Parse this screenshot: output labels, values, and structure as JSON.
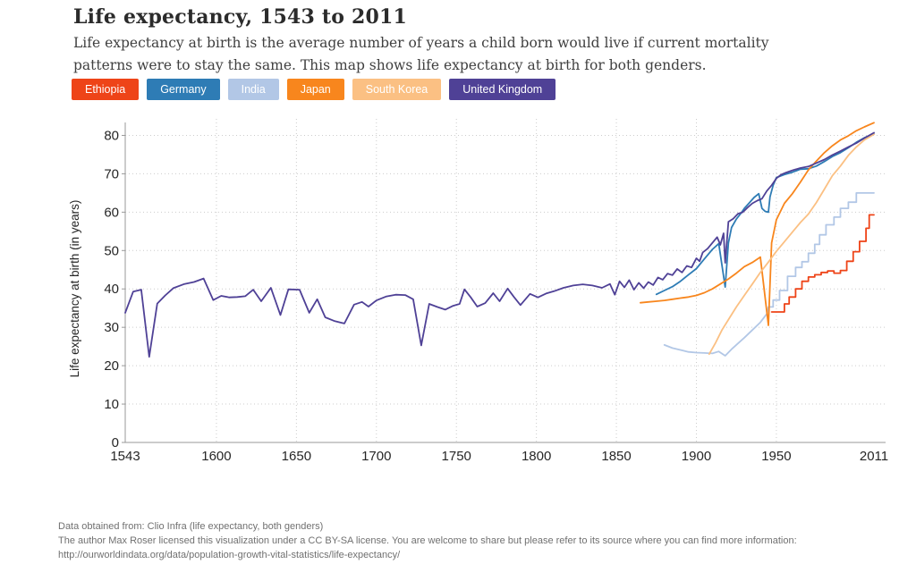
{
  "header": {
    "title": "Life expectancy, 1543 to 2011",
    "subtitle": "Life expectancy at birth is the average number of years a child born would live if current mortality patterns were to stay the same. This map shows life expectancy at birth for both genders."
  },
  "footer": {
    "line1": "Data obtained from: Clio Infra (life expectancy, both genders)",
    "line2": "The author Max Roser licensed this visualization under a CC BY-SA license. You are welcome to share but please refer to its source where you can find more information:",
    "line3": "http://ourworldindata.org/data/population-growth-vital-statistics/life-expectancy/"
  },
  "chart_data": {
    "type": "line",
    "title": "Life expectancy, 1543 to 2011",
    "xlabel": "",
    "ylabel": "Life expectancy at birth (in years)",
    "x_range": [
      1543,
      2011
    ],
    "y_range": [
      0,
      80
    ],
    "x_ticks": [
      1543,
      1600,
      1650,
      1700,
      1750,
      1800,
      1850,
      1900,
      1950,
      2011
    ],
    "y_ticks": [
      0,
      10,
      20,
      30,
      40,
      50,
      60,
      70,
      80
    ],
    "x_gridlines": [
      1600,
      1650,
      1700,
      1750,
      1800,
      1850,
      1900,
      1950
    ],
    "grid": "dotted",
    "grid_color": "#cccccc",
    "axis_color": "#999999",
    "legend_position": "top",
    "series": [
      {
        "name": "Ethiopia",
        "color": "#ee4418",
        "style": "step",
        "points": [
          [
            1947,
            34.0
          ],
          [
            1955,
            34.0
          ],
          [
            1955,
            36.1
          ],
          [
            1958,
            36.1
          ],
          [
            1958,
            37.9
          ],
          [
            1962,
            37.9
          ],
          [
            1962,
            40.0
          ],
          [
            1966,
            40.0
          ],
          [
            1966,
            42.0
          ],
          [
            1970,
            42.0
          ],
          [
            1970,
            43.1
          ],
          [
            1974,
            43.1
          ],
          [
            1974,
            43.7
          ],
          [
            1978,
            43.7
          ],
          [
            1978,
            44.3
          ],
          [
            1982,
            44.3
          ],
          [
            1982,
            44.7
          ],
          [
            1986,
            44.7
          ],
          [
            1986,
            44.1
          ],
          [
            1990,
            44.1
          ],
          [
            1990,
            44.8
          ],
          [
            1994,
            44.8
          ],
          [
            1994,
            47.2
          ],
          [
            1998,
            47.2
          ],
          [
            1998,
            49.7
          ],
          [
            2002,
            49.7
          ],
          [
            2002,
            52.4
          ],
          [
            2006,
            52.4
          ],
          [
            2006,
            55.8
          ],
          [
            2008,
            55.8
          ],
          [
            2008,
            59.3
          ],
          [
            2011,
            59.3
          ]
        ]
      },
      {
        "name": "Germany",
        "color": "#2e7cb5",
        "style": "line",
        "points": [
          [
            1875,
            38.6
          ],
          [
            1880,
            39.6
          ],
          [
            1885,
            40.6
          ],
          [
            1890,
            42.0
          ],
          [
            1895,
            43.7
          ],
          [
            1900,
            45.3
          ],
          [
            1905,
            47.8
          ],
          [
            1910,
            50.3
          ],
          [
            1914,
            51.8
          ],
          [
            1918,
            40.5
          ],
          [
            1920,
            52.0
          ],
          [
            1922,
            56.0
          ],
          [
            1925,
            58.2
          ],
          [
            1928,
            59.8
          ],
          [
            1930,
            61.0
          ],
          [
            1933,
            62.4
          ],
          [
            1936,
            63.8
          ],
          [
            1939,
            64.8
          ],
          [
            1941,
            61.0
          ],
          [
            1943,
            60.2
          ],
          [
            1945,
            60.0
          ],
          [
            1946,
            64.0
          ],
          [
            1948,
            67.0
          ],
          [
            1950,
            69.0
          ],
          [
            1955,
            69.8
          ],
          [
            1960,
            70.4
          ],
          [
            1965,
            71.2
          ],
          [
            1970,
            71.3
          ],
          [
            1975,
            72.0
          ],
          [
            1980,
            73.2
          ],
          [
            1985,
            74.5
          ],
          [
            1990,
            75.5
          ],
          [
            1995,
            76.8
          ],
          [
            2000,
            78.2
          ],
          [
            2005,
            79.4
          ],
          [
            2011,
            80.4
          ]
        ]
      },
      {
        "name": "India",
        "color": "#b2c7e6",
        "style": "step",
        "points": [
          [
            1880,
            25.4
          ],
          [
            1885,
            24.6
          ],
          [
            1890,
            24.1
          ],
          [
            1895,
            23.6
          ],
          [
            1900,
            23.4
          ],
          [
            1905,
            23.3
          ],
          [
            1910,
            23.2
          ],
          [
            1914,
            23.7
          ],
          [
            1918,
            22.6
          ],
          [
            1922,
            24.3
          ],
          [
            1926,
            25.8
          ],
          [
            1930,
            27.3
          ],
          [
            1935,
            29.3
          ],
          [
            1940,
            31.3
          ],
          [
            1944,
            33.5
          ],
          [
            1945,
            35.3
          ],
          [
            1948,
            35.3
          ],
          [
            1948,
            37.1
          ],
          [
            1952,
            37.1
          ],
          [
            1952,
            39.6
          ],
          [
            1957,
            39.6
          ],
          [
            1957,
            43.3
          ],
          [
            1962,
            43.3
          ],
          [
            1962,
            45.6
          ],
          [
            1966,
            45.6
          ],
          [
            1966,
            47.1
          ],
          [
            1970,
            47.1
          ],
          [
            1970,
            49.3
          ],
          [
            1974,
            49.3
          ],
          [
            1974,
            51.6
          ],
          [
            1977,
            51.6
          ],
          [
            1977,
            54.1
          ],
          [
            1981,
            54.1
          ],
          [
            1981,
            56.7
          ],
          [
            1986,
            56.7
          ],
          [
            1986,
            58.7
          ],
          [
            1990,
            58.7
          ],
          [
            1990,
            61.0
          ],
          [
            1995,
            61.0
          ],
          [
            1995,
            62.6
          ],
          [
            2000,
            62.6
          ],
          [
            2000,
            65.0
          ],
          [
            2011,
            65.0
          ]
        ]
      },
      {
        "name": "Japan",
        "color": "#f8861d",
        "style": "line",
        "points": [
          [
            1865,
            36.4
          ],
          [
            1870,
            36.6
          ],
          [
            1875,
            36.8
          ],
          [
            1880,
            37.0
          ],
          [
            1885,
            37.3
          ],
          [
            1890,
            37.6
          ],
          [
            1895,
            37.9
          ],
          [
            1900,
            38.3
          ],
          [
            1905,
            39.0
          ],
          [
            1910,
            40.0
          ],
          [
            1915,
            41.3
          ],
          [
            1920,
            42.6
          ],
          [
            1925,
            44.1
          ],
          [
            1930,
            45.8
          ],
          [
            1935,
            46.9
          ],
          [
            1940,
            48.3
          ],
          [
            1945,
            30.5
          ],
          [
            1947,
            52.0
          ],
          [
            1950,
            58.0
          ],
          [
            1955,
            62.3
          ],
          [
            1960,
            64.8
          ],
          [
            1965,
            67.8
          ],
          [
            1970,
            71.0
          ],
          [
            1975,
            73.3
          ],
          [
            1980,
            75.5
          ],
          [
            1985,
            77.3
          ],
          [
            1990,
            78.8
          ],
          [
            1995,
            79.9
          ],
          [
            2000,
            81.2
          ],
          [
            2005,
            82.2
          ],
          [
            2011,
            83.3
          ]
        ]
      },
      {
        "name": "South Korea",
        "color": "#fbc083",
        "style": "line",
        "points": [
          [
            1908,
            23.0
          ],
          [
            1912,
            26.0
          ],
          [
            1916,
            29.3
          ],
          [
            1920,
            32.0
          ],
          [
            1925,
            35.3
          ],
          [
            1930,
            38.3
          ],
          [
            1935,
            41.3
          ],
          [
            1940,
            44.3
          ],
          [
            1945,
            47.0
          ],
          [
            1950,
            49.8
          ],
          [
            1955,
            52.3
          ],
          [
            1960,
            54.8
          ],
          [
            1965,
            57.3
          ],
          [
            1970,
            59.5
          ],
          [
            1975,
            62.5
          ],
          [
            1980,
            66.0
          ],
          [
            1985,
            69.5
          ],
          [
            1990,
            72.0
          ],
          [
            1995,
            74.8
          ],
          [
            2000,
            77.0
          ],
          [
            2005,
            78.8
          ],
          [
            2011,
            80.3
          ]
        ]
      },
      {
        "name": "United Kingdom",
        "color": "#4f4196",
        "style": "line",
        "points": [
          [
            1543,
            33.8
          ],
          [
            1548,
            39.3
          ],
          [
            1553,
            39.8
          ],
          [
            1558,
            22.3
          ],
          [
            1563,
            36.2
          ],
          [
            1568,
            38.3
          ],
          [
            1573,
            40.2
          ],
          [
            1580,
            41.3
          ],
          [
            1586,
            41.8
          ],
          [
            1592,
            42.7
          ],
          [
            1598,
            37.1
          ],
          [
            1603,
            38.2
          ],
          [
            1608,
            37.8
          ],
          [
            1613,
            37.9
          ],
          [
            1618,
            38.1
          ],
          [
            1623,
            39.8
          ],
          [
            1628,
            36.8
          ],
          [
            1634,
            40.3
          ],
          [
            1640,
            33.2
          ],
          [
            1645,
            39.9
          ],
          [
            1652,
            39.8
          ],
          [
            1658,
            33.8
          ],
          [
            1663,
            37.3
          ],
          [
            1668,
            32.6
          ],
          [
            1674,
            31.6
          ],
          [
            1680,
            31.0
          ],
          [
            1686,
            35.9
          ],
          [
            1691,
            36.6
          ],
          [
            1695,
            35.4
          ],
          [
            1700,
            37.0
          ],
          [
            1706,
            38.0
          ],
          [
            1712,
            38.5
          ],
          [
            1718,
            38.4
          ],
          [
            1723,
            37.3
          ],
          [
            1728,
            25.3
          ],
          [
            1733,
            36.1
          ],
          [
            1738,
            35.3
          ],
          [
            1743,
            34.6
          ],
          [
            1748,
            35.6
          ],
          [
            1752,
            36.1
          ],
          [
            1755,
            39.9
          ],
          [
            1759,
            37.8
          ],
          [
            1763,
            35.4
          ],
          [
            1768,
            36.3
          ],
          [
            1773,
            38.9
          ],
          [
            1777,
            36.8
          ],
          [
            1782,
            40.1
          ],
          [
            1786,
            37.9
          ],
          [
            1790,
            35.8
          ],
          [
            1796,
            38.7
          ],
          [
            1801,
            37.8
          ],
          [
            1806,
            38.8
          ],
          [
            1811,
            39.4
          ],
          [
            1817,
            40.3
          ],
          [
            1823,
            40.9
          ],
          [
            1829,
            41.2
          ],
          [
            1835,
            40.9
          ],
          [
            1841,
            40.3
          ],
          [
            1846,
            41.3
          ],
          [
            1849,
            38.5
          ],
          [
            1852,
            42.0
          ],
          [
            1855,
            40.4
          ],
          [
            1858,
            42.3
          ],
          [
            1861,
            39.8
          ],
          [
            1864,
            41.6
          ],
          [
            1867,
            40.2
          ],
          [
            1870,
            41.8
          ],
          [
            1873,
            41.0
          ],
          [
            1876,
            43.0
          ],
          [
            1879,
            42.4
          ],
          [
            1882,
            44.0
          ],
          [
            1885,
            43.6
          ],
          [
            1888,
            45.2
          ],
          [
            1891,
            44.3
          ],
          [
            1894,
            46.0
          ],
          [
            1897,
            45.6
          ],
          [
            1900,
            48.0
          ],
          [
            1902,
            47.2
          ],
          [
            1904,
            49.5
          ],
          [
            1907,
            50.5
          ],
          [
            1910,
            52.0
          ],
          [
            1913,
            53.5
          ],
          [
            1915,
            51.5
          ],
          [
            1917,
            54.5
          ],
          [
            1918,
            46.8
          ],
          [
            1920,
            57.5
          ],
          [
            1923,
            58.3
          ],
          [
            1926,
            59.6
          ],
          [
            1929,
            60.0
          ],
          [
            1932,
            61.2
          ],
          [
            1935,
            62.3
          ],
          [
            1938,
            63.0
          ],
          [
            1941,
            63.5
          ],
          [
            1944,
            65.5
          ],
          [
            1947,
            67.0
          ],
          [
            1950,
            68.8
          ],
          [
            1953,
            69.8
          ],
          [
            1956,
            70.3
          ],
          [
            1960,
            70.9
          ],
          [
            1965,
            71.5
          ],
          [
            1970,
            71.9
          ],
          [
            1975,
            72.8
          ],
          [
            1980,
            73.7
          ],
          [
            1985,
            74.9
          ],
          [
            1990,
            75.9
          ],
          [
            1995,
            77.0
          ],
          [
            2000,
            78.0
          ],
          [
            2005,
            79.3
          ],
          [
            2011,
            80.7
          ]
        ]
      }
    ]
  }
}
